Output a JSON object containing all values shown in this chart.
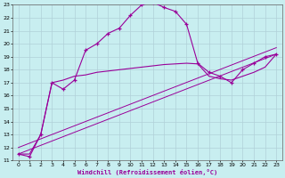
{
  "xlabel": "Windchill (Refroidissement éolien,°C)",
  "bg_color": "#c8eef0",
  "grid_color": "#b0d0d8",
  "line_color": "#990099",
  "xlim": [
    -0.5,
    23.5
  ],
  "ylim": [
    11,
    23
  ],
  "xticks": [
    0,
    1,
    2,
    3,
    4,
    5,
    6,
    7,
    8,
    9,
    10,
    11,
    12,
    13,
    14,
    15,
    16,
    17,
    18,
    19,
    20,
    21,
    22,
    23
  ],
  "yticks": [
    11,
    12,
    13,
    14,
    15,
    16,
    17,
    18,
    19,
    20,
    21,
    22,
    23
  ],
  "main_line_x": [
    0,
    1,
    2,
    3,
    4,
    5,
    6,
    7,
    8,
    9,
    10,
    11,
    12,
    13,
    14,
    15,
    16,
    17,
    18,
    19,
    20,
    21,
    22,
    23
  ],
  "main_line_y": [
    11.5,
    11.3,
    13.0,
    17.0,
    16.5,
    17.2,
    19.5,
    20.0,
    20.8,
    21.2,
    22.2,
    23.0,
    23.2,
    22.8,
    22.5,
    21.5,
    18.5,
    17.8,
    17.5,
    17.0,
    18.0,
    18.5,
    19.0,
    19.2
  ],
  "line2_x": [
    0,
    1,
    2,
    3,
    4,
    5,
    6,
    7,
    8,
    9,
    10,
    11,
    12,
    13,
    14,
    15,
    16,
    17,
    18,
    19,
    20,
    21,
    22,
    23
  ],
  "line2_y": [
    11.5,
    11.5,
    13.0,
    17.0,
    17.2,
    17.5,
    17.6,
    17.8,
    17.9,
    18.0,
    18.1,
    18.2,
    18.3,
    18.4,
    18.45,
    18.5,
    18.45,
    17.5,
    17.3,
    17.2,
    17.5,
    17.8,
    18.2,
    19.2
  ],
  "line3_x": [
    0,
    23
  ],
  "line3_y": [
    11.5,
    19.2
  ],
  "line4_x": [
    0,
    23
  ],
  "line4_y": [
    12.0,
    19.7
  ]
}
